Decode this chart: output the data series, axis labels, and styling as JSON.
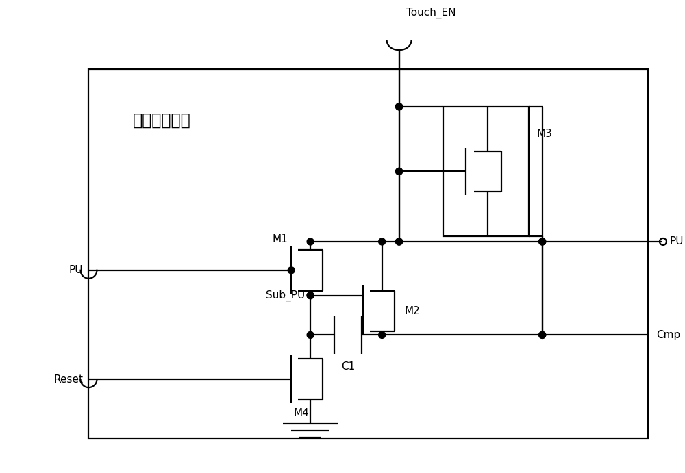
{
  "background": "#ffffff",
  "line_color": "#000000",
  "text_color": "#000000",
  "box_label": "电压补偿模块",
  "Touch_EN_label": "Touch_EN",
  "PU_out_label": "PU",
  "PU_in_label": "PU",
  "Reset_label": "Reset",
  "Sub_PU_label": "Sub_PU",
  "Cmp_label": "Cmp",
  "M1_label": "M1",
  "M2_label": "M2",
  "M3_label": "M3",
  "M4_label": "M4",
  "C1_label": "C1",
  "font_size_labels": 11,
  "font_size_box": 17,
  "lw": 1.6
}
